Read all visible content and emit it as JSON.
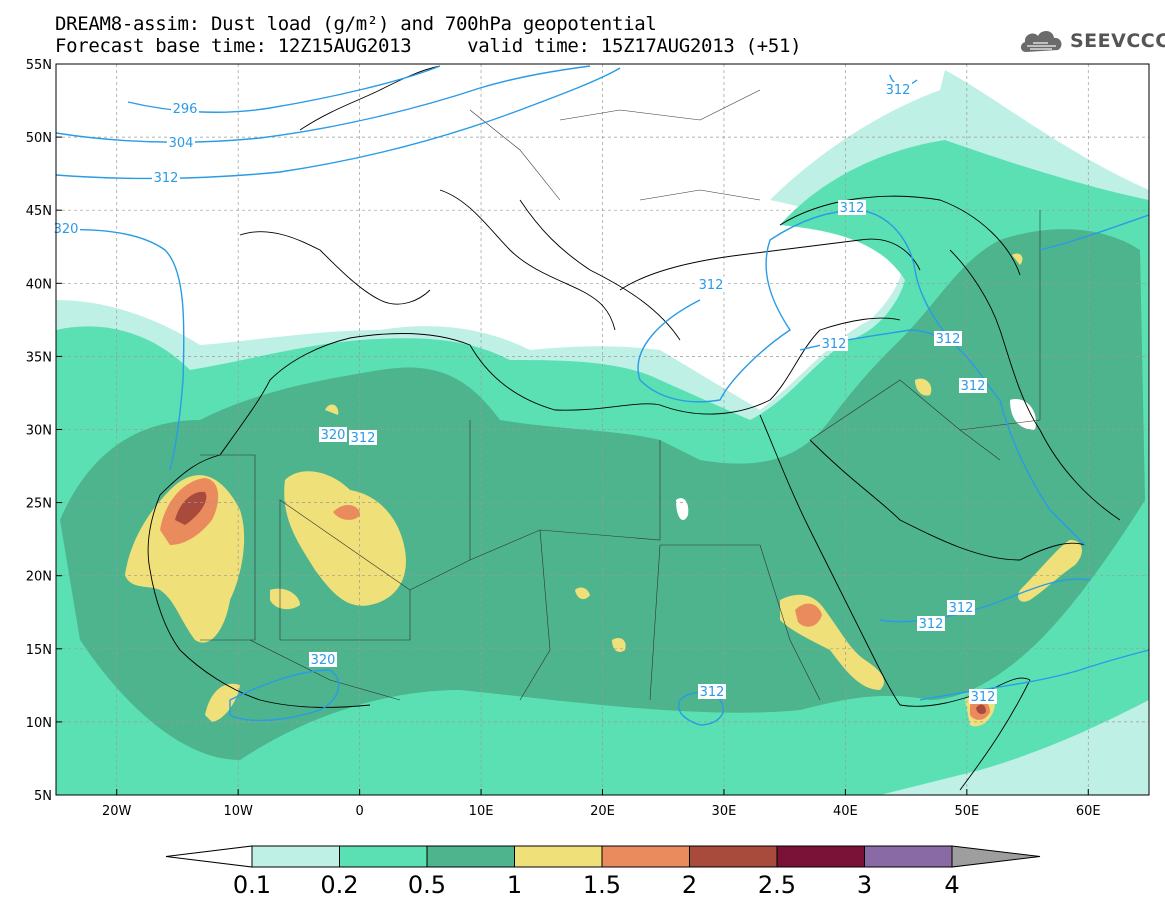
{
  "header": {
    "line1": "DREAM8-assim: Dust load (g/m²) and 700hPa geopotential",
    "line2": "Forecast base time: 12Z15AUG2013     valid time: 15Z17AUG2013 (+51)"
  },
  "logo": {
    "text": "SEEVCCC",
    "icon": "cloud-icon"
  },
  "map": {
    "lon_range": [
      -25,
      65
    ],
    "lat_range": [
      5,
      55
    ],
    "lat_labels": [
      "55N",
      "50N",
      "45N",
      "40N",
      "35N",
      "30N",
      "25N",
      "20N",
      "15N",
      "10N",
      "5N"
    ],
    "lon_labels": [
      "20W",
      "10W",
      "0",
      "10E",
      "20E",
      "30E",
      "40E",
      "50E",
      "60E"
    ],
    "grid": true
  },
  "contour_labels": [
    "296",
    "304",
    "312",
    "312",
    "320",
    "312",
    "312",
    "312",
    "312",
    "312",
    "312",
    "312",
    "312",
    "312",
    "312",
    "320",
    "320"
  ],
  "colorbar": {
    "ticks": [
      "0.1",
      "0.2",
      "0.5",
      "1",
      "1.5",
      "2",
      "2.5",
      "3",
      "4"
    ],
    "colors": [
      "#ffffff",
      "#bff0e6",
      "#5be0b4",
      "#4db48e",
      "#f0e07a",
      "#ea8b5e",
      "#a84a3c",
      "#7a1238",
      "#8a6aa4",
      "#9e9e9e"
    ]
  }
}
